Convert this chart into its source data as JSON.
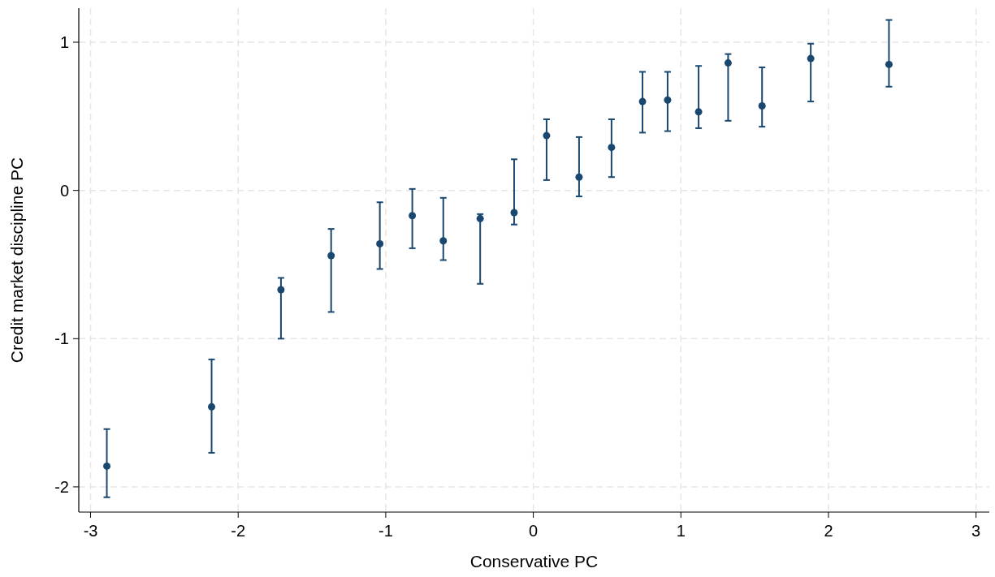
{
  "chart_data": {
    "type": "scatter",
    "xlabel": "Conservative PC",
    "ylabel": "Credit market discipline PC",
    "x": [
      -2.89,
      -2.18,
      -1.71,
      -1.37,
      -1.04,
      -0.82,
      -0.61,
      -0.36,
      -0.13,
      0.09,
      0.31,
      0.53,
      0.74,
      0.91,
      1.12,
      1.32,
      1.55,
      1.88,
      2.41
    ],
    "series": [
      {
        "color": "#1a476f",
        "values": [
          -1.86,
          -1.46,
          -0.67,
          -0.44,
          -0.36,
          -0.17,
          -0.34,
          -0.19,
          -0.15,
          0.37,
          0.09,
          0.29,
          0.6,
          0.61,
          0.53,
          0.86,
          0.57,
          0.89,
          0.85
        ],
        "errors": [
          [
            -2.07,
            -1.61
          ],
          [
            -1.77,
            -1.14
          ],
          [
            -1.0,
            -0.59
          ],
          [
            -0.82,
            -0.26
          ],
          [
            -0.53,
            -0.08
          ],
          [
            -0.39,
            0.01
          ],
          [
            -0.47,
            -0.05
          ],
          [
            -0.63,
            -0.16
          ],
          [
            -0.23,
            0.21
          ],
          [
            0.07,
            0.48
          ],
          [
            -0.04,
            0.36
          ],
          [
            0.09,
            0.48
          ],
          [
            0.39,
            0.8
          ],
          [
            0.4,
            0.8
          ],
          [
            0.42,
            0.84
          ],
          [
            0.47,
            0.92
          ],
          [
            0.43,
            0.83
          ],
          [
            0.6,
            0.99
          ],
          [
            0.7,
            1.15
          ]
        ]
      }
    ],
    "xlim": [
      -3.08,
      3.09
    ],
    "ylim": [
      -2.17,
      1.23
    ],
    "xticks": [
      -3,
      -2,
      -1,
      0,
      1,
      2,
      3
    ],
    "yticks": [
      -2,
      -1,
      0,
      1
    ],
    "grid": true,
    "marker": "circle"
  }
}
